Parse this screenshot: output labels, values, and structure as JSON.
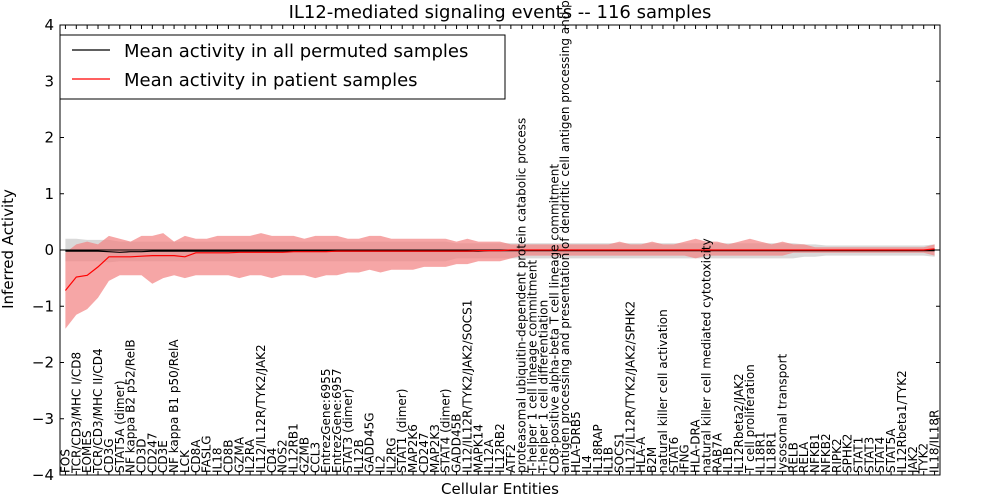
{
  "chart_data": {
    "type": "line",
    "title": "IL12-mediated signaling events -- 116 samples",
    "xlabel": "Cellular Entities",
    "ylabel": "Inferred Activity",
    "ylim": [
      -4,
      4
    ],
    "yticks": [
      "4",
      "3",
      "2",
      "1",
      "0",
      "−1",
      "−2",
      "−3",
      "−4"
    ],
    "legend": {
      "position": "top-left",
      "entries": [
        {
          "label": "Mean activity in all permuted samples",
          "color": "#000000"
        },
        {
          "label": "Mean activity in patient samples",
          "color": "#ff0000"
        }
      ]
    },
    "colors": {
      "permuted": "#000000",
      "patient": "#ff0000",
      "patient_band": "#f28080",
      "permuted_band": "#c0c0c0"
    },
    "categories": [
      "FOS",
      "TCR/CD3/MHC I/CD8",
      "EOMES",
      "TCR/CD3/MHC II/CD4",
      "CD3G",
      "STAT5A (dimer)",
      "NF kappa B2 p52/RelB",
      "CD3D",
      "CD247",
      "CD3E",
      "NF kappa B1 p50/RelA",
      "LCK",
      "CD8A",
      "FASLG",
      "IL18",
      "CD8B",
      "GZMA",
      "IL2RA",
      "IL12/IL12R/TYK2/JAK2",
      "CD4",
      "NOS2",
      "IL12RB1",
      "GZMB",
      "CCL3",
      "EntrezGene:6955",
      "EntrezGene:6957",
      "STAT3 (dimer)",
      "IL12B",
      "GADD45G",
      "IL2",
      "IL2RG",
      "STAT1 (dimer)",
      "MAP2K6",
      "CD247",
      "MAP2K3",
      "STAT4 (dimer)",
      "GADD45B",
      "IL12/IL12R/TYK2/JAK2/SOCS1",
      "MAPK14",
      "IL12A",
      "IL12RB2",
      "ATF2",
      "proteasomal ubiquitin-dependent protein catabolic process",
      "T-helper 1 cell lineage commitment",
      "T-helper 1 cell differentiation",
      "CD8-positive alpha-beta T cell lineage commitment",
      "antigen processing and presentation of dendritic cell antigen processing and presentation",
      "HLA-DRB5",
      "IL4",
      "IL18RAP",
      "IL1B",
      "SOCS1",
      "IL12/IL12R/TYK2/JAK2/SPHK2",
      "HLA-A",
      "B2M",
      "natural killer cell activation",
      "STAT6",
      "IFNG",
      "HLA-DRA",
      "natural killer cell mediated cytotoxicity",
      "RAB7A",
      "IL1B",
      "IL12Rbeta2/JAK2",
      "T cell proliferation",
      "IL18R1",
      "IL18R1",
      "lysosomal transport",
      "RELB",
      "RELA",
      "NFKB1",
      "NFKB2",
      "RIPK2",
      "SPHK2",
      "STAT1",
      "STAT3",
      "STAT4",
      "STAT5A",
      "IL12Rbeta1/TYK2",
      "JAK2",
      "TYK2",
      "IL18/IL18R"
    ],
    "series": [
      {
        "name": "Mean activity in all permuted samples",
        "values": [
          -0.02,
          -0.02,
          -0.02,
          -0.02,
          -0.03,
          -0.04,
          -0.03,
          -0.03,
          -0.02,
          -0.02,
          -0.02,
          -0.02,
          -0.02,
          -0.02,
          -0.02,
          -0.02,
          -0.02,
          -0.02,
          -0.02,
          -0.02,
          -0.02,
          -0.02,
          -0.02,
          -0.02,
          -0.02,
          -0.02,
          -0.02,
          -0.02,
          -0.02,
          -0.02,
          -0.02,
          -0.02,
          -0.02,
          -0.02,
          -0.02,
          -0.02,
          -0.02,
          -0.02,
          -0.02,
          -0.01,
          -0.01,
          -0.01,
          -0.01,
          -0.01,
          -0.01,
          -0.01,
          -0.01,
          -0.01,
          -0.01,
          -0.01,
          -0.01,
          -0.01,
          -0.01,
          -0.01,
          -0.01,
          -0.01,
          -0.01,
          -0.01,
          -0.01,
          -0.01,
          -0.01,
          -0.01,
          -0.01,
          -0.01,
          -0.01,
          -0.01,
          -0.01,
          -0.01,
          -0.01,
          -0.01,
          -0.01,
          -0.01,
          -0.01,
          -0.01,
          -0.01,
          -0.01,
          -0.01,
          -0.01,
          -0.01,
          -0.01,
          -0.01
        ]
      },
      {
        "name": "Mean activity in patient samples",
        "values": [
          -0.72,
          -0.48,
          -0.45,
          -0.3,
          -0.12,
          -0.12,
          -0.12,
          -0.11,
          -0.1,
          -0.1,
          -0.1,
          -0.12,
          -0.05,
          -0.05,
          -0.05,
          -0.05,
          -0.04,
          -0.04,
          -0.04,
          -0.04,
          -0.04,
          -0.03,
          -0.03,
          -0.03,
          -0.03,
          -0.02,
          -0.02,
          -0.02,
          -0.02,
          -0.02,
          -0.02,
          -0.02,
          -0.02,
          -0.02,
          -0.02,
          -0.02,
          -0.02,
          -0.02,
          -0.01,
          -0.01,
          -0.01,
          0.0,
          0.0,
          0.0,
          0.0,
          0.0,
          0.0,
          0.0,
          0.0,
          0.0,
          0.0,
          0.0,
          0.0,
          0.0,
          0.0,
          0.0,
          0.0,
          0.0,
          0.0,
          0.0,
          0.0,
          0.0,
          0.0,
          0.0,
          0.0,
          0.0,
          0.0,
          0.0,
          0.0,
          0.0,
          0.0,
          0.0,
          0.0,
          0.0,
          0.0,
          0.0,
          0.0,
          0.0,
          0.0,
          0.0,
          0.02
        ]
      }
    ],
    "patient_band": {
      "upper": [
        -0.05,
        0.1,
        0.15,
        0.1,
        0.25,
        0.2,
        0.15,
        0.25,
        0.25,
        0.3,
        0.15,
        0.25,
        0.2,
        0.2,
        0.25,
        0.25,
        0.25,
        0.25,
        0.3,
        0.25,
        0.25,
        0.25,
        0.2,
        0.25,
        0.25,
        0.25,
        0.2,
        0.2,
        0.25,
        0.25,
        0.2,
        0.2,
        0.2,
        0.2,
        0.2,
        0.2,
        0.15,
        0.2,
        0.15,
        0.15,
        0.15,
        0.1,
        0.1,
        0.1,
        0.1,
        0.1,
        0.1,
        0.1,
        0.1,
        0.1,
        0.1,
        0.15,
        0.1,
        0.1,
        0.15,
        0.1,
        0.1,
        0.15,
        0.2,
        0.15,
        0.15,
        0.1,
        0.15,
        0.2,
        0.15,
        0.1,
        0.15,
        0.1,
        0.1,
        0.05,
        0.05,
        0.05,
        0.05,
        0.05,
        0.05,
        0.05,
        0.05,
        0.05,
        0.05,
        0.05,
        0.1
      ],
      "lower": [
        -1.4,
        -1.15,
        -1.05,
        -0.85,
        -0.55,
        -0.45,
        -0.45,
        -0.45,
        -0.6,
        -0.5,
        -0.45,
        -0.5,
        -0.45,
        -0.45,
        -0.45,
        -0.45,
        -0.5,
        -0.45,
        -0.45,
        -0.5,
        -0.45,
        -0.45,
        -0.45,
        -0.5,
        -0.45,
        -0.45,
        -0.4,
        -0.4,
        -0.35,
        -0.4,
        -0.35,
        -0.35,
        -0.35,
        -0.3,
        -0.3,
        -0.3,
        -0.25,
        -0.25,
        -0.2,
        -0.2,
        -0.2,
        -0.15,
        -0.1,
        -0.1,
        -0.1,
        -0.1,
        -0.1,
        -0.1,
        -0.1,
        -0.1,
        -0.1,
        -0.1,
        -0.1,
        -0.1,
        -0.1,
        -0.1,
        -0.1,
        -0.1,
        -0.15,
        -0.1,
        -0.1,
        -0.1,
        -0.1,
        -0.1,
        -0.1,
        -0.1,
        -0.1,
        -0.05,
        -0.05,
        -0.05,
        -0.05,
        -0.05,
        -0.05,
        -0.05,
        -0.05,
        -0.05,
        -0.05,
        -0.05,
        -0.05,
        -0.05,
        -0.1
      ]
    },
    "permuted_band": {
      "upper": [
        0.2,
        0.2,
        0.18,
        0.18,
        0.18,
        0.15,
        0.15,
        0.15,
        0.15,
        0.15,
        0.15,
        0.15,
        0.15,
        0.15,
        0.15,
        0.15,
        0.15,
        0.15,
        0.15,
        0.15,
        0.15,
        0.15,
        0.15,
        0.15,
        0.15,
        0.15,
        0.15,
        0.15,
        0.15,
        0.15,
        0.15,
        0.15,
        0.15,
        0.15,
        0.15,
        0.15,
        0.12,
        0.12,
        0.12,
        0.12,
        0.12,
        0.12,
        0.12,
        0.12,
        0.12,
        0.12,
        0.12,
        0.12,
        0.12,
        0.12,
        0.12,
        0.12,
        0.12,
        0.12,
        0.12,
        0.12,
        0.12,
        0.12,
        0.12,
        0.12,
        0.12,
        0.12,
        0.12,
        0.12,
        0.12,
        0.12,
        0.12,
        0.12,
        0.1,
        0.1,
        0.08,
        0.08,
        0.08,
        0.08,
        0.08,
        0.08,
        0.08,
        0.08,
        0.08,
        0.08,
        0.1
      ],
      "lower": [
        -0.2,
        -0.2,
        -0.2,
        -0.2,
        -0.22,
        -0.2,
        -0.2,
        -0.2,
        -0.2,
        -0.2,
        -0.2,
        -0.2,
        -0.2,
        -0.2,
        -0.2,
        -0.2,
        -0.2,
        -0.2,
        -0.2,
        -0.2,
        -0.2,
        -0.2,
        -0.2,
        -0.2,
        -0.2,
        -0.2,
        -0.2,
        -0.2,
        -0.2,
        -0.2,
        -0.2,
        -0.2,
        -0.2,
        -0.2,
        -0.2,
        -0.2,
        -0.15,
        -0.15,
        -0.15,
        -0.15,
        -0.15,
        -0.15,
        -0.15,
        -0.15,
        -0.15,
        -0.15,
        -0.15,
        -0.15,
        -0.15,
        -0.15,
        -0.15,
        -0.15,
        -0.15,
        -0.15,
        -0.15,
        -0.15,
        -0.15,
        -0.15,
        -0.15,
        -0.15,
        -0.15,
        -0.15,
        -0.15,
        -0.15,
        -0.15,
        -0.15,
        -0.15,
        -0.15,
        -0.12,
        -0.12,
        -0.1,
        -0.1,
        -0.1,
        -0.1,
        -0.1,
        -0.1,
        -0.1,
        -0.1,
        -0.1,
        -0.1,
        -0.12
      ]
    }
  }
}
